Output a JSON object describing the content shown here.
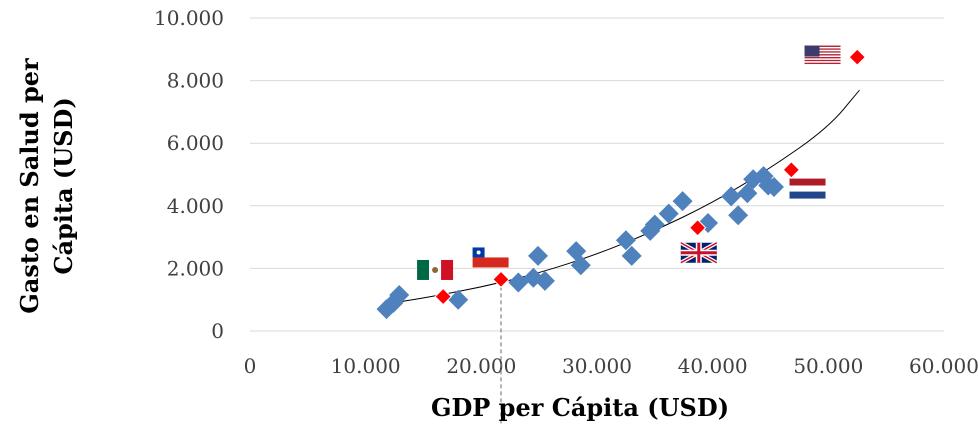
{
  "chart_data": {
    "type": "scatter",
    "title": "",
    "xlabel": "GDP per Cápita (USD)",
    "ylabel_lines": [
      "Gasto en Salud per",
      "Cápita (USD)"
    ],
    "xlim": [
      0,
      60000
    ],
    "ylim": [
      0,
      10000
    ],
    "x_tick_labels": [
      "0",
      "10.000",
      "20.000",
      "30.000",
      "40.000",
      "50.000",
      "60.000"
    ],
    "y_tick_labels": [
      "0",
      "2.000",
      "4.000",
      "6.000",
      "8.000",
      "10.000"
    ],
    "x_ticks": [
      0,
      10000,
      20000,
      30000,
      40000,
      50000,
      60000
    ],
    "y_ticks": [
      0,
      2000,
      4000,
      6000,
      8000,
      10000
    ],
    "grid": "horizontal",
    "reference_line_x": 21700,
    "colors": {
      "blue_marker": "#4f81bd",
      "red_marker": "#ff0000",
      "gridline": "#d9d9d9",
      "trend": "#000000"
    },
    "series": [
      {
        "marker": "blue-diamond",
        "points": [
          [
            11800,
            700
          ],
          [
            12400,
            900
          ],
          [
            12900,
            1150
          ],
          [
            18000,
            1000
          ],
          [
            23200,
            1550
          ],
          [
            24500,
            1700
          ],
          [
            24900,
            2400
          ],
          [
            25500,
            1600
          ],
          [
            28200,
            2550
          ],
          [
            28600,
            2100
          ],
          [
            32500,
            2900
          ],
          [
            33000,
            2400
          ],
          [
            34600,
            3200
          ],
          [
            35000,
            3400
          ],
          [
            36200,
            3750
          ],
          [
            37400,
            4150
          ],
          [
            39600,
            3450
          ],
          [
            41600,
            4300
          ],
          [
            42200,
            3700
          ],
          [
            43000,
            4400
          ],
          [
            43500,
            4850
          ],
          [
            44400,
            4950
          ],
          [
            44800,
            4650
          ],
          [
            45300,
            4600
          ]
        ]
      },
      {
        "marker": "red-diamond",
        "points": [
          [
            16700,
            1100
          ],
          [
            21700,
            1650
          ],
          [
            38700,
            3300
          ],
          [
            46800,
            5150
          ],
          [
            52500,
            8750
          ]
        ]
      }
    ],
    "trend_points": [
      [
        11500,
        850
      ],
      [
        15000,
        1050
      ],
      [
        20000,
        1400
      ],
      [
        25000,
        1850
      ],
      [
        30000,
        2450
      ],
      [
        35000,
        3200
      ],
      [
        40000,
        4100
      ],
      [
        45000,
        5200
      ],
      [
        50000,
        6500
      ],
      [
        52700,
        7700
      ]
    ],
    "flags": [
      {
        "country": "mexico-flag",
        "x": 16000,
        "y": 1950
      },
      {
        "country": "chile-flag",
        "x": 20800,
        "y": 2350
      },
      {
        "country": "uk-flag",
        "x": 38800,
        "y": 2500
      },
      {
        "country": "netherlands-flag",
        "x": 48200,
        "y": 4550
      },
      {
        "country": "usa-flag",
        "x": 49500,
        "y": 8800
      }
    ]
  }
}
